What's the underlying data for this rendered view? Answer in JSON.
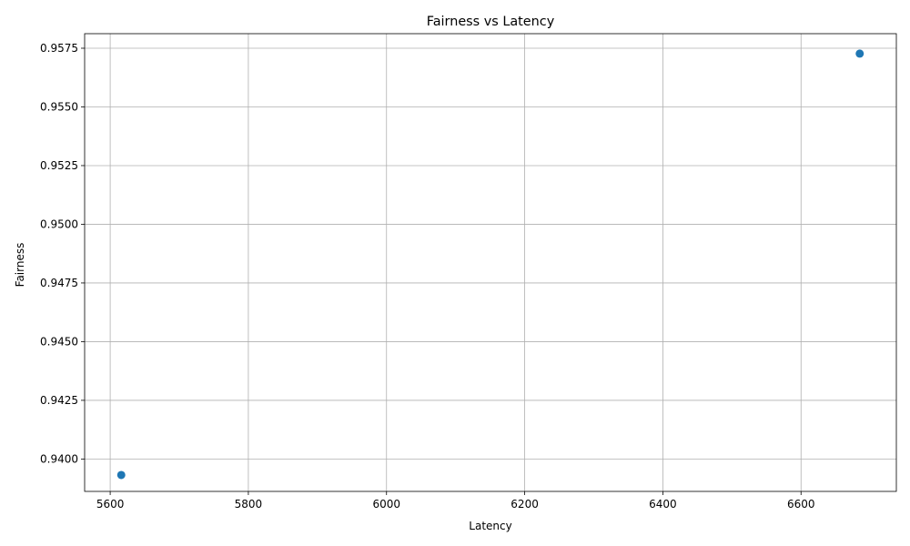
{
  "chart_data": {
    "type": "scatter",
    "title": "Fairness vs Latency",
    "xlabel": "Latency",
    "ylabel": "Fairness",
    "xlim": [
      5563,
      6738
    ],
    "ylim": [
      0.93862,
      0.95812
    ],
    "xticks": [
      5600,
      5800,
      6000,
      6200,
      6400,
      6600
    ],
    "yticks": [
      0.94,
      0.9425,
      0.945,
      0.9475,
      0.95,
      0.9525,
      0.955,
      0.9575
    ],
    "xtick_labels": [
      "5600",
      "5800",
      "6000",
      "6200",
      "6400",
      "6600"
    ],
    "ytick_labels": [
      "0.9400",
      "0.9425",
      "0.9450",
      "0.9475",
      "0.9500",
      "0.9525",
      "0.9550",
      "0.9575"
    ],
    "grid": true,
    "marker_color": "#1f77b4",
    "points": [
      {
        "x": 5616,
        "y": 0.93932
      },
      {
        "x": 6685,
        "y": 0.95727
      }
    ]
  }
}
